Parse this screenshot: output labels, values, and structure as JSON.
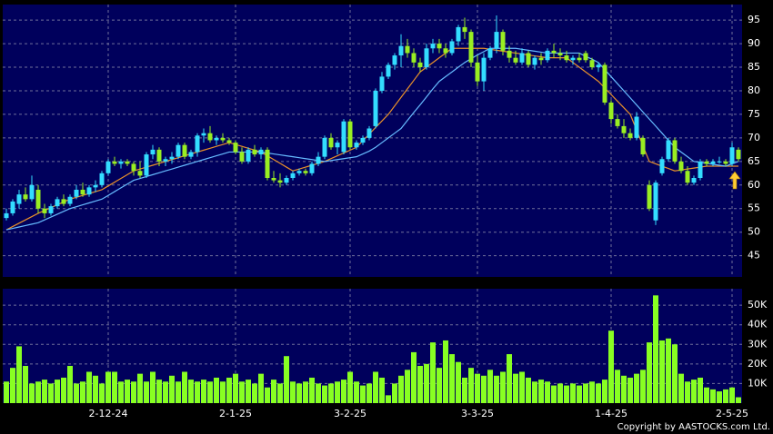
{
  "chart_data": [
    {
      "type": "candlestick",
      "categories": [
        null,
        null,
        null,
        null,
        null,
        null,
        null,
        null,
        null,
        null,
        null,
        null,
        null,
        null,
        null,
        null,
        "2-12-24",
        null,
        null,
        null,
        null,
        null,
        null,
        null,
        null,
        null,
        null,
        null,
        null,
        null,
        null,
        null,
        null,
        null,
        null,
        null,
        "2-1-25",
        null,
        null,
        null,
        null,
        null,
        null,
        null,
        null,
        null,
        null,
        null,
        null,
        null,
        null,
        null,
        null,
        null,
        "3-2-25",
        null,
        null,
        null,
        null,
        null,
        null,
        null,
        null,
        null,
        null,
        null,
        null,
        null,
        null,
        null,
        null,
        null,
        null,
        null,
        "3-3-25",
        null,
        null,
        null,
        null,
        null,
        null,
        null,
        null,
        null,
        null,
        null,
        null,
        null,
        null,
        null,
        null,
        null,
        null,
        null,
        null,
        "1-4-25",
        null,
        null,
        null,
        null,
        null,
        null,
        null,
        null,
        null,
        null,
        null,
        null,
        null,
        null,
        null,
        null,
        null,
        null,
        "2-5-25",
        null
      ],
      "ohlc": [
        [
          53,
          55,
          52.5,
          54
        ],
        [
          54,
          57,
          53.5,
          56.5
        ],
        [
          56,
          59,
          55,
          58
        ],
        [
          58,
          59.5,
          56.5,
          57
        ],
        [
          57,
          62,
          56.5,
          60
        ],
        [
          59,
          60,
          54,
          55
        ],
        [
          55,
          56,
          53,
          54
        ],
        [
          54,
          56,
          53.5,
          55.5
        ],
        [
          55.5,
          57.5,
          55,
          57
        ],
        [
          57,
          58,
          55.5,
          56
        ],
        [
          56,
          58,
          55.5,
          57.5
        ],
        [
          57.5,
          60,
          57,
          59
        ],
        [
          59,
          60.5,
          57.5,
          58
        ],
        [
          58,
          60,
          57.5,
          59.5
        ],
        [
          59.5,
          61,
          58.5,
          60
        ],
        [
          60,
          63,
          59.5,
          62.5
        ],
        [
          62.5,
          65.5,
          62,
          65
        ],
        [
          65,
          66,
          64,
          64.5
        ],
        [
          64.5,
          65.5,
          63.5,
          65
        ],
        [
          65,
          65.5,
          64,
          64.5
        ],
        [
          64.5,
          65,
          62,
          63
        ],
        [
          63,
          65,
          61.5,
          62
        ],
        [
          62,
          67,
          61.5,
          66.5
        ],
        [
          66.5,
          68.5,
          65.5,
          67.5
        ],
        [
          67.5,
          68,
          64,
          65
        ],
        [
          65,
          66,
          64,
          65.5
        ],
        [
          65.5,
          67,
          64.5,
          66
        ],
        [
          66,
          69,
          65.5,
          68.5
        ],
        [
          68.5,
          69,
          65.5,
          66
        ],
        [
          66,
          67.5,
          65.5,
          67
        ],
        [
          67,
          71,
          66,
          70.5
        ],
        [
          70.5,
          72,
          69,
          71
        ],
        [
          71,
          72.5,
          69,
          69.5
        ],
        [
          69.5,
          70.5,
          68.5,
          70
        ],
        [
          70,
          71,
          69,
          69.5
        ],
        [
          69.5,
          70,
          68.5,
          69
        ],
        [
          69,
          69.5,
          66.5,
          67
        ],
        [
          67,
          68,
          64.5,
          65
        ],
        [
          65,
          68,
          64.5,
          67.5
        ],
        [
          67.5,
          68.5,
          66,
          66.5
        ],
        [
          66.5,
          68,
          65.5,
          67.5
        ],
        [
          67.5,
          68,
          61,
          61.5
        ],
        [
          61.5,
          63,
          60.5,
          61
        ],
        [
          61,
          62.5,
          59.5,
          60.5
        ],
        [
          60.5,
          62,
          60,
          61.5
        ],
        [
          61.5,
          63,
          61,
          62.5
        ],
        [
          62.5,
          63.5,
          62,
          63
        ],
        [
          63,
          63.5,
          62,
          62.5
        ],
        [
          62.5,
          65,
          62,
          64.5
        ],
        [
          64.5,
          67,
          64,
          66
        ],
        [
          66,
          70.5,
          65.5,
          70
        ],
        [
          70,
          71,
          67.5,
          68
        ],
        [
          68,
          69.5,
          66.5,
          69
        ],
        [
          67,
          74,
          66.5,
          73.5
        ],
        [
          73.5,
          74,
          67.5,
          68
        ],
        [
          68,
          69.5,
          67.5,
          69
        ],
        [
          69,
          70.5,
          68.5,
          70
        ],
        [
          70,
          72.5,
          69.5,
          72
        ],
        [
          72.5,
          80.5,
          72,
          80
        ],
        [
          80,
          84,
          79.5,
          83
        ],
        [
          83,
          86,
          82.5,
          85.5
        ],
        [
          85.5,
          88,
          84.5,
          87.5
        ],
        [
          87.5,
          92,
          85,
          89.5
        ],
        [
          89.5,
          91,
          87,
          88
        ],
        [
          88,
          89,
          85,
          86
        ],
        [
          86,
          87,
          84,
          85
        ],
        [
          85,
          90,
          84.5,
          89
        ],
        [
          89,
          91,
          88,
          90
        ],
        [
          90,
          91,
          88,
          89
        ],
        [
          89,
          90,
          87,
          88
        ],
        [
          88,
          91,
          87.5,
          90.5
        ],
        [
          90.5,
          94,
          89.5,
          93.5
        ],
        [
          93.5,
          95.5,
          91,
          92.5
        ],
        [
          92.5,
          93,
          85,
          86
        ],
        [
          86,
          87.5,
          81,
          82
        ],
        [
          82,
          88,
          80,
          87
        ],
        [
          87,
          89.5,
          86.5,
          89
        ],
        [
          89,
          96,
          88,
          92.5
        ],
        [
          92.5,
          93,
          87.5,
          88.5
        ],
        [
          88.5,
          89.5,
          86,
          87
        ],
        [
          87,
          88.5,
          85.5,
          86
        ],
        [
          86,
          89,
          85.5,
          88
        ],
        [
          88,
          88.5,
          85,
          85.5
        ],
        [
          85.5,
          87.5,
          84.5,
          87
        ],
        [
          87,
          88,
          85.5,
          86.5
        ],
        [
          86.5,
          89,
          86,
          88.5
        ],
        [
          88.5,
          90,
          87,
          88
        ],
        [
          88,
          89,
          86.5,
          87.5
        ],
        [
          87.5,
          88.5,
          86,
          86.5
        ],
        [
          86.5,
          87.5,
          85.5,
          87
        ],
        [
          87,
          88,
          86,
          86.5
        ],
        [
          88,
          88.5,
          86,
          86.5
        ],
        [
          86.5,
          87,
          84.5,
          85
        ],
        [
          85,
          86,
          84,
          85.5
        ],
        [
          85.5,
          86,
          77,
          77.5
        ],
        [
          77.5,
          78,
          73,
          74
        ],
        [
          74,
          75,
          72,
          72.5
        ],
        [
          72.5,
          74,
          70,
          71
        ],
        [
          71,
          72,
          69.5,
          70
        ],
        [
          70,
          75.5,
          69.5,
          74.5
        ],
        [
          70,
          70.5,
          66,
          66.5
        ],
        [
          60,
          61,
          54.5,
          55
        ],
        [
          52.5,
          61,
          51.5,
          60.5
        ],
        [
          62.5,
          66,
          62,
          65.5
        ],
        [
          65.5,
          70,
          65,
          69.5
        ],
        [
          69.5,
          70,
          64.5,
          65
        ],
        [
          65,
          66,
          62.5,
          63
        ],
        [
          63,
          64,
          60,
          60.5
        ],
        [
          60.5,
          62,
          60,
          61.5
        ],
        [
          61.5,
          65.5,
          61,
          65
        ],
        [
          65,
          65.5,
          64,
          64.5
        ],
        [
          64.5,
          65.5,
          64,
          65
        ],
        [
          65,
          66,
          64.5,
          65
        ],
        [
          65,
          65.5,
          64,
          64.5
        ],
        [
          64.5,
          69,
          64,
          68
        ],
        [
          67.5,
          68,
          65,
          65.5
        ]
      ],
      "up_color": "#33ddff",
      "down_color": "#99ee22",
      "lines": [
        {
          "color": "#e8902a",
          "values": [
            50.5,
            51.2,
            51.9,
            52.6,
            53.3,
            54.0,
            54.6,
            55.2,
            55.8,
            56.4,
            57.0,
            57.4,
            57.8,
            58.2,
            58.6,
            59.0,
            59.8,
            60.6,
            61.4,
            62.2,
            63.0,
            63.4,
            63.8,
            64.2,
            64.6,
            65.0,
            65.4,
            65.8,
            66.2,
            66.6,
            67.0,
            67.4,
            67.8,
            68.2,
            68.6,
            69.0,
            68.6,
            68.2,
            67.8,
            67.4,
            67.0,
            66.2,
            65.4,
            64.6,
            63.8,
            63.0,
            63.4,
            63.8,
            64.2,
            64.6,
            65.0,
            65.6,
            66.2,
            66.8,
            67.4,
            68.0,
            69.4,
            70.8,
            72.2,
            73.6,
            75.0,
            76.8,
            78.6,
            80.4,
            82.2,
            84.0,
            85.0,
            86.0,
            87.0,
            88.0,
            89.0,
            89.0,
            89.0,
            89.0,
            89.0,
            89.0,
            88.8,
            88.6,
            88.4,
            88.2,
            88.0,
            87.8,
            87.6,
            87.4,
            87.2,
            87.0,
            87.0,
            87.0,
            87.0,
            86.0,
            85.0,
            84.0,
            83.0,
            82.0,
            80.6,
            79.2,
            77.8,
            76.4,
            75.0,
            71.7,
            68.3,
            65.0,
            64.5,
            64.0,
            63.5,
            63.0,
            63.2,
            63.4,
            63.6,
            63.8,
            64.0,
            64.0,
            64.0,
            64.0,
            64.0,
            64.0
          ]
        },
        {
          "color": "#66bbff",
          "values": [
            50.5,
            50.8,
            51.1,
            51.4,
            51.7,
            52.0,
            52.6,
            53.2,
            53.8,
            54.4,
            55.0,
            55.4,
            55.8,
            56.2,
            56.6,
            57.0,
            57.8,
            58.6,
            59.4,
            60.2,
            61.0,
            61.4,
            61.8,
            62.2,
            62.6,
            63.0,
            63.4,
            63.8,
            64.2,
            64.6,
            65.0,
            65.4,
            65.8,
            66.2,
            66.6,
            67.0,
            67.0,
            67.0,
            67.0,
            67.0,
            67.0,
            66.8,
            66.6,
            66.4,
            66.2,
            66.0,
            65.8,
            65.6,
            65.4,
            65.2,
            65.0,
            65.2,
            65.4,
            65.6,
            65.8,
            66.0,
            66.6,
            67.2,
            68.0,
            69.0,
            70.0,
            71.0,
            72.0,
            73.7,
            75.4,
            77.0,
            78.7,
            80.4,
            82.0,
            83.0,
            84.0,
            85.0,
            86.0,
            86.8,
            87.6,
            88.3,
            89.0,
            89.0,
            89.0,
            89.0,
            89.0,
            88.8,
            88.6,
            88.4,
            88.2,
            88.0,
            88.0,
            88.0,
            88.0,
            88.0,
            88.0,
            87.3,
            86.7,
            86.0,
            84.5,
            83.0,
            81.5,
            80.0,
            78.5,
            77.0,
            75.5,
            74.0,
            72.5,
            71.0,
            69.5,
            68.0,
            67.0,
            66.0,
            65.0,
            64.8,
            64.6,
            64.4,
            64.2,
            64.0,
            64.5,
            65.0
          ]
        }
      ],
      "ylim": [
        40.5,
        98.3
      ],
      "yticks": [
        45,
        50,
        55,
        60,
        65,
        70,
        75,
        80,
        85,
        90,
        95
      ],
      "grid": true
    },
    {
      "type": "bar",
      "values": [
        11000,
        18000,
        29000,
        19000,
        10000,
        11000,
        12000,
        10000,
        12000,
        13000,
        19000,
        10000,
        11000,
        16000,
        14000,
        10000,
        16000,
        16000,
        11000,
        12000,
        11000,
        15000,
        11000,
        16000,
        12000,
        11000,
        14000,
        11000,
        16000,
        12000,
        11000,
        12000,
        11000,
        13000,
        11000,
        13000,
        15000,
        11000,
        12000,
        10000,
        15000,
        8000,
        12000,
        10000,
        24000,
        11000,
        10000,
        11000,
        13000,
        10000,
        9000,
        10000,
        11000,
        12000,
        16000,
        11000,
        9000,
        10000,
        16000,
        13000,
        4000,
        10000,
        14000,
        17000,
        26000,
        19000,
        20000,
        31000,
        18000,
        32000,
        25000,
        21000,
        13000,
        18000,
        15000,
        14000,
        17000,
        14000,
        16000,
        25000,
        15000,
        16000,
        13000,
        11000,
        12000,
        11000,
        9000,
        10000,
        9000,
        10000,
        9000,
        10000,
        11000,
        10000,
        12000,
        37000,
        17000,
        14000,
        13000,
        15000,
        17000,
        31000,
        55000,
        32000,
        33000,
        30000,
        15000,
        11000,
        12000,
        13000,
        8000,
        7000,
        6000,
        7000,
        8000,
        3000
      ],
      "color": "#88ff22",
      "ylim": [
        0,
        58400
      ],
      "yticks": [
        {
          "value": 10000,
          "label": "10K"
        },
        {
          "value": 20000,
          "label": "20K"
        },
        {
          "value": 30000,
          "label": "30K"
        },
        {
          "value": 40000,
          "label": "40K"
        },
        {
          "value": 50000,
          "label": "50K"
        }
      ],
      "grid": true
    }
  ],
  "copyright": "Copyright by AASTOCKS.com Ltd."
}
